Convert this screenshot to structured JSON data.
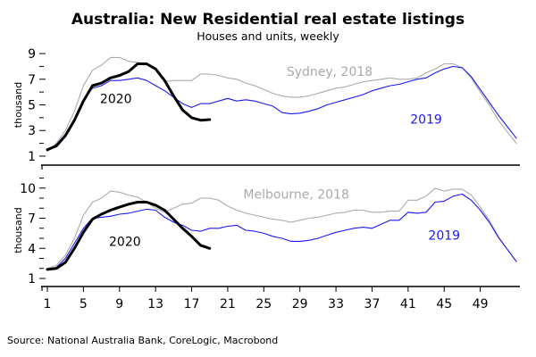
{
  "chart_data": {
    "title": "Australia: New Residential real estate listings",
    "subtitle": "Houses and units, weekly",
    "source": "Source: National Australia Bank, CoreLogic, Macrobond",
    "type": "line",
    "x_ticks": [
      1,
      5,
      9,
      13,
      17,
      21,
      25,
      29,
      33,
      37,
      41,
      45,
      49
    ],
    "xlim": [
      1,
      53
    ],
    "colors": {
      "2018": "#aaaaaa",
      "2019": "#1a1aee",
      "2020": "#000000"
    },
    "panels": [
      {
        "name": "Sydney",
        "ylabel": "thousand",
        "ylim": [
          0.3,
          9.7
        ],
        "y_ticks": [
          1,
          3,
          5,
          7,
          9
        ],
        "y_minor": [
          2,
          4,
          6,
          8
        ],
        "series": [
          {
            "name": "Sydney, 2018",
            "year": "2018",
            "start_week": 1,
            "values": [
              1.4,
              2.0,
              3.0,
              4.5,
              6.5,
              7.7,
              8.1,
              8.7,
              8.7,
              8.4,
              8.3,
              8.2,
              7.8,
              6.8,
              6.9,
              6.9,
              6.9,
              7.4,
              7.4,
              7.3,
              7.1,
              7.0,
              6.7,
              6.5,
              6.2,
              5.9,
              5.7,
              5.6,
              5.6,
              5.7,
              5.9,
              6.1,
              6.3,
              6.4,
              6.6,
              6.8,
              6.9,
              7.0,
              7.1,
              7.0,
              7.0,
              7.1,
              7.5,
              7.8,
              8.2,
              8.2,
              7.9,
              7.1,
              6.0,
              5.0,
              3.8,
              2.9,
              2.0
            ]
          },
          {
            "name": "2019",
            "year": "2019",
            "start_week": 1,
            "values": [
              1.4,
              1.9,
              2.7,
              3.9,
              5.4,
              6.3,
              6.5,
              6.9,
              6.9,
              7.0,
              7.1,
              6.9,
              6.5,
              6.1,
              5.6,
              5.1,
              4.8,
              5.1,
              5.1,
              5.3,
              5.5,
              5.3,
              5.4,
              5.3,
              5.1,
              4.9,
              4.4,
              4.3,
              4.35,
              4.5,
              4.7,
              5.0,
              5.2,
              5.4,
              5.6,
              5.8,
              6.1,
              6.3,
              6.5,
              6.6,
              6.8,
              7.0,
              7.1,
              7.5,
              7.8,
              8.0,
              7.9,
              7.2,
              6.2,
              5.2,
              4.2,
              3.3,
              2.4
            ]
          },
          {
            "name": "2020",
            "year": "2020",
            "start_week": 1,
            "values": [
              1.5,
              1.8,
              2.6,
              3.8,
              5.3,
              6.5,
              6.7,
              7.1,
              7.3,
              7.6,
              8.2,
              8.2,
              7.8,
              6.9,
              5.7,
              4.6,
              4.0,
              3.8,
              3.85
            ]
          }
        ],
        "annotations": [
          {
            "text": "Sydney, 2018",
            "year": "2018",
            "x": 32.3,
            "y": 7.6
          },
          {
            "text": "2020",
            "year": "2020",
            "x": 8.6,
            "y": 5.5
          },
          {
            "text": "2019",
            "year": "2019",
            "x": 43,
            "y": 3.9
          }
        ]
      },
      {
        "name": "Melbourne",
        "ylabel": "thousand",
        "ylim": [
          0.2,
          11.4
        ],
        "y_ticks": [
          1,
          4,
          7,
          10
        ],
        "y_minor": [
          2,
          3,
          5,
          6,
          8,
          9,
          11
        ],
        "series": [
          {
            "name": "Melbourne, 2018",
            "year": "2018",
            "start_week": 1,
            "values": [
              2.0,
              2.3,
              3.3,
              5.0,
              7.3,
              8.6,
              9.0,
              9.7,
              9.6,
              9.3,
              9.1,
              8.6,
              8.0,
              7.6,
              8.0,
              8.4,
              8.5,
              9.0,
              9.0,
              8.8,
              8.2,
              7.8,
              7.5,
              7.3,
              7.1,
              6.9,
              6.8,
              6.6,
              6.8,
              7.0,
              7.1,
              7.3,
              7.5,
              7.6,
              7.8,
              7.8,
              7.6,
              7.6,
              7.7,
              7.7,
              8.8,
              8.8,
              9.2,
              10.0,
              9.7,
              9.9,
              9.9,
              9.3,
              8.1,
              6.8,
              5.2,
              3.9,
              2.7
            ]
          },
          {
            "name": "2019",
            "year": "2019",
            "start_week": 1,
            "values": [
              1.9,
              2.1,
              3.0,
              4.5,
              6.0,
              7.0,
              7.1,
              7.2,
              7.4,
              7.5,
              7.7,
              7.9,
              7.8,
              7.1,
              6.6,
              6.3,
              5.8,
              5.7,
              6.0,
              6.0,
              6.2,
              6.3,
              5.8,
              5.7,
              5.5,
              5.2,
              5.0,
              4.7,
              4.7,
              4.8,
              5.0,
              5.3,
              5.6,
              5.8,
              6.0,
              6.1,
              6.0,
              6.4,
              6.8,
              6.8,
              7.6,
              7.5,
              7.6,
              8.6,
              8.7,
              9.2,
              9.4,
              8.8,
              7.8,
              6.6,
              5.1,
              3.9,
              2.7
            ]
          },
          {
            "name": "2020",
            "year": "2020",
            "start_week": 1,
            "values": [
              1.9,
              2.0,
              2.6,
              4.0,
              5.6,
              6.9,
              7.4,
              7.8,
              8.1,
              8.4,
              8.6,
              8.6,
              8.3,
              7.8,
              6.9,
              6.0,
              5.2,
              4.3,
              4.0
            ]
          }
        ],
        "annotations": [
          {
            "text": "Melbourne, 2018",
            "year": "2018",
            "x": 28.6,
            "y": 9.4
          },
          {
            "text": "2020",
            "year": "2020",
            "x": 9.6,
            "y": 4.7
          },
          {
            "text": "2019",
            "year": "2019",
            "x": 45,
            "y": 5.3
          }
        ]
      }
    ]
  }
}
